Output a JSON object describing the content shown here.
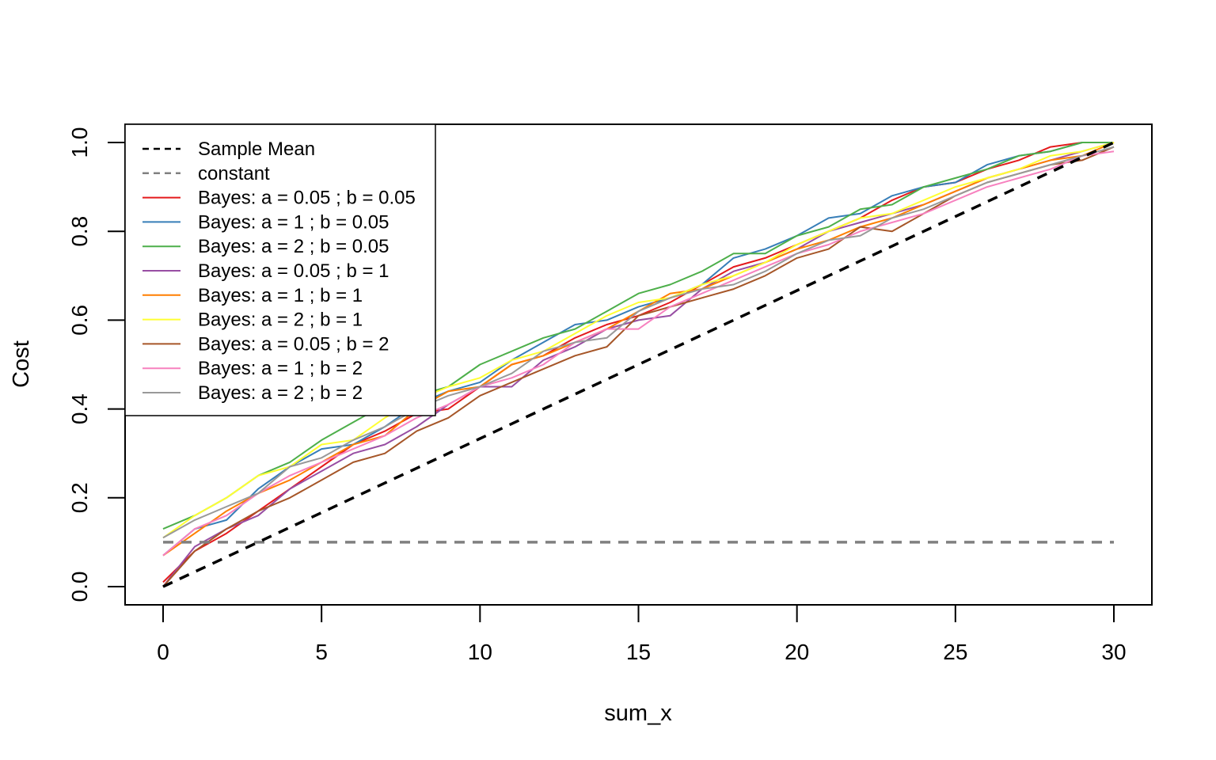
{
  "chart_data": {
    "type": "line",
    "title": "",
    "xlabel": "sum_x",
    "ylabel": "Cost",
    "xlim": [
      0,
      30
    ],
    "ylim": [
      0,
      1
    ],
    "xticks": [
      "0",
      "5",
      "10",
      "15",
      "20",
      "25",
      "30"
    ],
    "yticks": [
      "0.0",
      "0.2",
      "0.4",
      "0.6",
      "0.8",
      "1.0"
    ],
    "grid": false,
    "legend_position": "top-left",
    "x": [
      0,
      1,
      2,
      3,
      4,
      5,
      6,
      7,
      8,
      9,
      10,
      11,
      12,
      13,
      14,
      15,
      16,
      17,
      18,
      19,
      20,
      21,
      22,
      23,
      24,
      25,
      26,
      27,
      28,
      29,
      30
    ],
    "series": [
      {
        "name": "Sample Mean",
        "color": "#000000",
        "dash": true,
        "values": [
          0,
          0.0333,
          0.0667,
          0.1,
          0.1333,
          0.1667,
          0.2,
          0.2333,
          0.2667,
          0.3,
          0.3333,
          0.3667,
          0.4,
          0.4333,
          0.4667,
          0.5,
          0.5333,
          0.5667,
          0.6,
          0.6333,
          0.6667,
          0.7,
          0.7333,
          0.7667,
          0.8,
          0.8333,
          0.8667,
          0.9,
          0.9333,
          0.9667,
          1.0
        ]
      },
      {
        "name": "constant",
        "color": "#808080",
        "dash": true,
        "values": [
          0.1,
          0.1,
          0.1,
          0.1,
          0.1,
          0.1,
          0.1,
          0.1,
          0.1,
          0.1,
          0.1,
          0.1,
          0.1,
          0.1,
          0.1,
          0.1,
          0.1,
          0.1,
          0.1,
          0.1,
          0.1,
          0.1,
          0.1,
          0.1,
          0.1,
          0.1,
          0.1,
          0.1,
          0.1,
          0.1,
          0.1
        ]
      },
      {
        "name": "Bayes: a = 0.05 ; b = 0.05",
        "color": "#E41A1C",
        "dash": false,
        "values": [
          0.01,
          0.08,
          0.12,
          0.17,
          0.22,
          0.27,
          0.32,
          0.35,
          0.39,
          0.4,
          0.45,
          0.5,
          0.52,
          0.56,
          0.59,
          0.61,
          0.64,
          0.68,
          0.72,
          0.74,
          0.77,
          0.8,
          0.83,
          0.87,
          0.9,
          0.91,
          0.94,
          0.96,
          0.99,
          1.0,
          1.0
        ]
      },
      {
        "name": "Bayes: a = 1 ; b = 0.05",
        "color": "#377EB8",
        "dash": false,
        "values": [
          0.07,
          0.13,
          0.15,
          0.22,
          0.27,
          0.31,
          0.32,
          0.36,
          0.41,
          0.44,
          0.46,
          0.51,
          0.55,
          0.59,
          0.6,
          0.63,
          0.65,
          0.68,
          0.74,
          0.76,
          0.79,
          0.83,
          0.84,
          0.88,
          0.9,
          0.91,
          0.95,
          0.97,
          0.98,
          1.0,
          1.0
        ]
      },
      {
        "name": "Bayes: a = 2 ; b = 0.05",
        "color": "#4DAF4A",
        "dash": false,
        "values": [
          0.13,
          0.16,
          0.2,
          0.25,
          0.28,
          0.33,
          0.37,
          0.41,
          0.43,
          0.45,
          0.5,
          0.53,
          0.56,
          0.58,
          0.62,
          0.66,
          0.68,
          0.71,
          0.75,
          0.75,
          0.79,
          0.81,
          0.85,
          0.86,
          0.9,
          0.92,
          0.94,
          0.97,
          0.98,
          1.0,
          1.0
        ]
      },
      {
        "name": "Bayes: a = 0.05 ; b = 1",
        "color": "#984EA3",
        "dash": false,
        "values": [
          0.0,
          0.09,
          0.13,
          0.16,
          0.22,
          0.26,
          0.3,
          0.32,
          0.36,
          0.41,
          0.45,
          0.45,
          0.51,
          0.54,
          0.58,
          0.6,
          0.61,
          0.67,
          0.71,
          0.73,
          0.76,
          0.8,
          0.82,
          0.84,
          0.86,
          0.89,
          0.92,
          0.94,
          0.96,
          0.98,
          1.0
        ]
      },
      {
        "name": "Bayes: a = 1 ; b = 1",
        "color": "#FF7F00",
        "dash": false,
        "values": [
          0.07,
          0.12,
          0.17,
          0.21,
          0.24,
          0.28,
          0.32,
          0.34,
          0.4,
          0.44,
          0.45,
          0.5,
          0.52,
          0.55,
          0.58,
          0.62,
          0.66,
          0.67,
          0.7,
          0.73,
          0.76,
          0.78,
          0.81,
          0.83,
          0.86,
          0.89,
          0.92,
          0.94,
          0.96,
          0.97,
          1.0
        ]
      },
      {
        "name": "Bayes: a = 2 ; b = 1",
        "color": "#FFFF33",
        "dash": false,
        "values": [
          0.11,
          0.16,
          0.2,
          0.25,
          0.27,
          0.32,
          0.33,
          0.38,
          0.42,
          0.45,
          0.47,
          0.51,
          0.53,
          0.57,
          0.61,
          0.64,
          0.65,
          0.68,
          0.7,
          0.73,
          0.77,
          0.8,
          0.83,
          0.84,
          0.87,
          0.9,
          0.92,
          0.94,
          0.97,
          0.98,
          1.0
        ]
      },
      {
        "name": "Bayes: a = 0.05 ; b = 2",
        "color": "#A65628",
        "dash": false,
        "values": [
          0.0,
          0.08,
          0.13,
          0.17,
          0.2,
          0.24,
          0.28,
          0.3,
          0.35,
          0.38,
          0.43,
          0.46,
          0.49,
          0.52,
          0.54,
          0.61,
          0.63,
          0.65,
          0.67,
          0.7,
          0.74,
          0.76,
          0.81,
          0.8,
          0.84,
          0.88,
          0.91,
          0.93,
          0.95,
          0.96,
          0.99
        ]
      },
      {
        "name": "Bayes: a = 1 ; b = 2",
        "color": "#F781BF",
        "dash": false,
        "values": [
          0.07,
          0.13,
          0.16,
          0.21,
          0.25,
          0.28,
          0.31,
          0.34,
          0.38,
          0.41,
          0.45,
          0.47,
          0.5,
          0.55,
          0.58,
          0.58,
          0.63,
          0.66,
          0.69,
          0.72,
          0.75,
          0.77,
          0.8,
          0.82,
          0.84,
          0.87,
          0.9,
          0.92,
          0.94,
          0.97,
          0.98
        ]
      },
      {
        "name": "Bayes: a = 2 ; b = 2",
        "color": "#999999",
        "dash": false,
        "values": [
          0.11,
          0.15,
          0.18,
          0.21,
          0.27,
          0.29,
          0.33,
          0.36,
          0.4,
          0.43,
          0.45,
          0.48,
          0.53,
          0.55,
          0.56,
          0.62,
          0.65,
          0.67,
          0.68,
          0.71,
          0.75,
          0.78,
          0.79,
          0.83,
          0.85,
          0.88,
          0.91,
          0.93,
          0.95,
          0.97,
          0.99
        ]
      }
    ]
  }
}
